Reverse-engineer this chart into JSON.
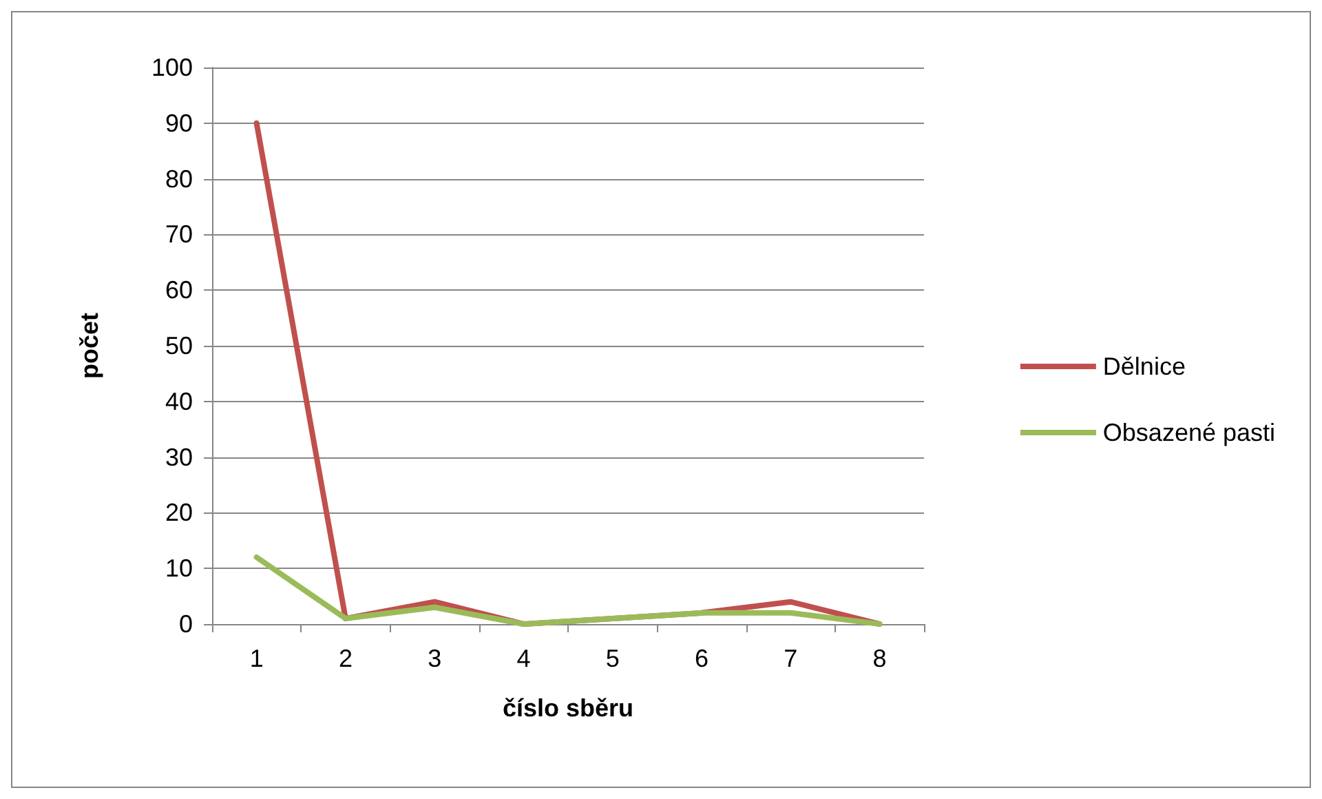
{
  "chart_data": {
    "type": "line",
    "xlabel": "číslo sběru",
    "ylabel": "počet",
    "categories": [
      "1",
      "2",
      "3",
      "4",
      "5",
      "6",
      "7",
      "8"
    ],
    "series": [
      {
        "name": "Dělnice",
        "color": "#c0504d",
        "values": [
          90,
          1,
          4,
          0,
          1,
          2,
          4,
          0
        ]
      },
      {
        "name": "Obsazené pasti",
        "color": "#9bbb59",
        "values": [
          12,
          1,
          3,
          0,
          1,
          2,
          2,
          0
        ]
      }
    ],
    "ylim": [
      0,
      100
    ],
    "yticks": [
      0,
      10,
      20,
      30,
      40,
      50,
      60,
      70,
      80,
      90,
      100
    ],
    "grid": "y",
    "legend": "right",
    "marker": "none",
    "line_style": "solid"
  }
}
